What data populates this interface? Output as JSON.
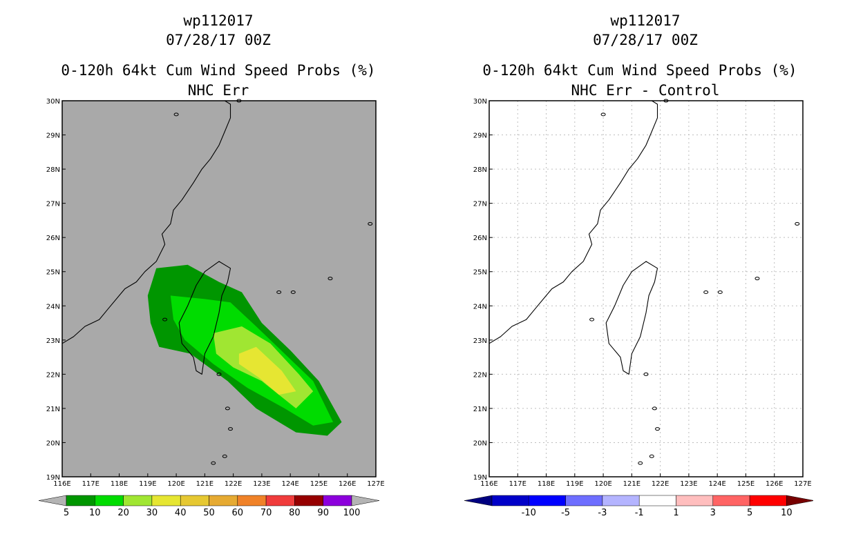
{
  "left": {
    "title1": "wp112017",
    "title2": "07/28/17 00Z",
    "title3": "0-120h 64kt Cum Wind Speed Probs (%)",
    "title4": "NHC Err",
    "map_background": "#a9a9a9",
    "colorbar_labels": [
      "5",
      "10",
      "20",
      "30",
      "40",
      "50",
      "60",
      "70",
      "80",
      "90",
      "100"
    ],
    "colorbar_colors": [
      "#009600",
      "#00dc00",
      "#a0e632",
      "#e6e632",
      "#e6c832",
      "#e6aa32",
      "#f08228",
      "#f03c3c",
      "#960000",
      "#8c00dc"
    ],
    "colorbar_end_colors": [
      "#b4b4b4",
      "#b4b4b4"
    ]
  },
  "right": {
    "title1": "wp112017",
    "title2": "07/28/17 00Z",
    "title3": "0-120h 64kt Cum Wind Speed Probs (%)",
    "title4": "NHC Err - Control",
    "map_background": "#ffffff",
    "colorbar_labels": [
      "-10",
      "-5",
      "-3",
      "-1",
      "1",
      "3",
      "5",
      "10"
    ],
    "colorbar_colors": [
      "#0000c8",
      "#0000ff",
      "#6e6eff",
      "#b4b4ff",
      "#ffffff",
      "#ffbebe",
      "#ff6464",
      "#ff0000"
    ],
    "colorbar_end_colors": [
      "#000080",
      "#780000"
    ]
  },
  "chart_data": [
    {
      "type": "heatmap",
      "title": "0-120h 64kt Cum Wind Speed Probs (%) - NHC Err",
      "x_ticks": [
        "116E",
        "117E",
        "118E",
        "119E",
        "120E",
        "121E",
        "122E",
        "123E",
        "124E",
        "125E",
        "126E",
        "127E"
      ],
      "y_ticks": [
        "19N",
        "20N",
        "21N",
        "22N",
        "23N",
        "24N",
        "25N",
        "26N",
        "27N",
        "28N",
        "29N",
        "30N"
      ],
      "xlim": [
        116,
        127
      ],
      "ylim": [
        19,
        30
      ],
      "levels": [
        5,
        10,
        20,
        30,
        40,
        50,
        60,
        70,
        80,
        90,
        100
      ],
      "contours": [
        {
          "level": 5,
          "color": "#009600",
          "lonlat": [
            [
              119.3,
              25.1
            ],
            [
              120.4,
              25.2
            ],
            [
              121.5,
              24.7
            ],
            [
              122.3,
              24.4
            ],
            [
              123.0,
              23.5
            ],
            [
              124.0,
              22.7
            ],
            [
              125.0,
              21.8
            ],
            [
              125.8,
              20.6
            ],
            [
              125.3,
              20.2
            ],
            [
              124.2,
              20.3
            ],
            [
              122.8,
              21.0
            ],
            [
              121.8,
              21.8
            ],
            [
              120.5,
              22.6
            ],
            [
              119.4,
              22.8
            ],
            [
              119.1,
              23.5
            ],
            [
              119.0,
              24.3
            ],
            [
              119.3,
              25.1
            ]
          ]
        },
        {
          "level": 10,
          "color": "#00dc00",
          "lonlat": [
            [
              119.8,
              24.3
            ],
            [
              121.0,
              24.2
            ],
            [
              121.9,
              24.1
            ],
            [
              122.8,
              23.4
            ],
            [
              123.8,
              22.6
            ],
            [
              124.8,
              21.8
            ],
            [
              125.5,
              20.6
            ],
            [
              124.8,
              20.5
            ],
            [
              123.8,
              21.0
            ],
            [
              122.5,
              21.6
            ],
            [
              121.3,
              22.3
            ],
            [
              120.3,
              23.0
            ],
            [
              119.9,
              23.6
            ],
            [
              119.8,
              24.3
            ]
          ]
        },
        {
          "level": 20,
          "color": "#a0e632",
          "lonlat": [
            [
              121.3,
              23.2
            ],
            [
              122.3,
              23.4
            ],
            [
              123.3,
              22.9
            ],
            [
              124.3,
              22.0
            ],
            [
              124.8,
              21.5
            ],
            [
              124.2,
              21.0
            ],
            [
              123.0,
              21.8
            ],
            [
              122.0,
              22.2
            ],
            [
              121.4,
              22.6
            ],
            [
              121.3,
              23.2
            ]
          ]
        },
        {
          "level": 30,
          "color": "#e6e632",
          "lonlat": [
            [
              122.2,
              22.6
            ],
            [
              122.8,
              22.8
            ],
            [
              123.7,
              22.1
            ],
            [
              124.2,
              21.5
            ],
            [
              123.6,
              21.4
            ],
            [
              122.9,
              21.9
            ],
            [
              122.2,
              22.3
            ],
            [
              122.2,
              22.6
            ]
          ]
        }
      ]
    },
    {
      "type": "heatmap",
      "title": "0-120h 64kt Cum Wind Speed Probs (%) - NHC Err - Control",
      "x_ticks": [
        "116E",
        "117E",
        "118E",
        "119E",
        "120E",
        "121E",
        "122E",
        "123E",
        "124E",
        "125E",
        "126E",
        "127E"
      ],
      "y_ticks": [
        "19N",
        "20N",
        "21N",
        "22N",
        "23N",
        "24N",
        "25N",
        "26N",
        "27N",
        "28N",
        "29N",
        "30N"
      ],
      "xlim": [
        116,
        127
      ],
      "ylim": [
        19,
        30
      ],
      "levels": [
        -10,
        -5,
        -3,
        -1,
        1,
        3,
        5,
        10
      ],
      "contours": []
    }
  ],
  "geography": {
    "coast": [
      [
        116.0,
        22.9
      ],
      [
        116.4,
        23.1
      ],
      [
        116.8,
        23.4
      ],
      [
        117.3,
        23.6
      ],
      [
        117.6,
        23.9
      ],
      [
        118.0,
        24.3
      ],
      [
        118.2,
        24.5
      ],
      [
        118.6,
        24.7
      ],
      [
        118.9,
        25.0
      ],
      [
        119.3,
        25.3
      ],
      [
        119.6,
        25.8
      ],
      [
        119.5,
        26.1
      ],
      [
        119.8,
        26.4
      ],
      [
        119.9,
        26.8
      ],
      [
        120.2,
        27.1
      ],
      [
        120.6,
        27.6
      ],
      [
        120.9,
        28.0
      ],
      [
        121.2,
        28.3
      ],
      [
        121.5,
        28.7
      ],
      [
        121.7,
        29.1
      ],
      [
        121.9,
        29.5
      ],
      [
        121.9,
        29.9
      ],
      [
        121.7,
        30.0
      ]
    ],
    "taiwan": [
      [
        121.0,
        25.0
      ],
      [
        121.5,
        25.3
      ],
      [
        121.9,
        25.1
      ],
      [
        121.8,
        24.7
      ],
      [
        121.6,
        24.3
      ],
      [
        121.5,
        23.8
      ],
      [
        121.3,
        23.1
      ],
      [
        121.0,
        22.6
      ],
      [
        120.9,
        22.0
      ],
      [
        120.7,
        22.1
      ],
      [
        120.6,
        22.5
      ],
      [
        120.2,
        22.9
      ],
      [
        120.1,
        23.5
      ],
      [
        120.4,
        24.0
      ],
      [
        120.7,
        24.6
      ],
      [
        121.0,
        25.0
      ]
    ],
    "islands": [
      [
        119.6,
        23.6
      ],
      [
        123.6,
        24.4
      ],
      [
        124.1,
        24.4
      ],
      [
        125.4,
        24.8
      ],
      [
        126.8,
        26.4
      ],
      [
        121.5,
        22.0
      ],
      [
        121.8,
        21.0
      ],
      [
        121.9,
        20.4
      ],
      [
        121.3,
        19.4
      ],
      [
        121.7,
        19.6
      ],
      [
        120.0,
        29.6
      ],
      [
        122.2,
        30.0
      ]
    ]
  }
}
